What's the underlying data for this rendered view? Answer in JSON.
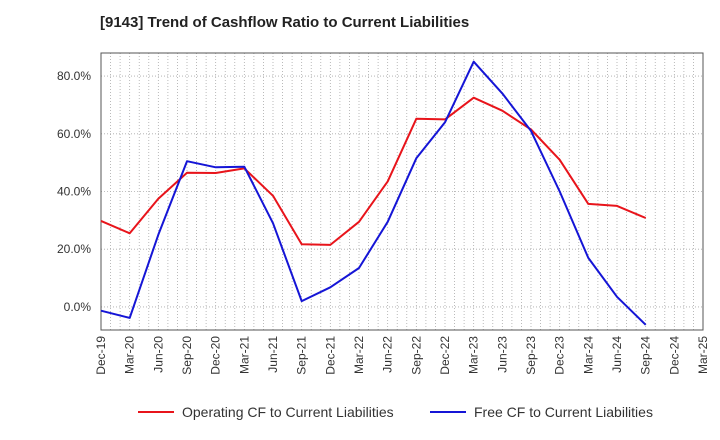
{
  "chart_data": {
    "type": "line",
    "title": "[9143]  Trend of Cashflow Ratio to Current Liabilities",
    "xlabel": "",
    "ylabel": "",
    "categories": [
      "Dec-19",
      "Mar-20",
      "Jun-20",
      "Sep-20",
      "Dec-20",
      "Mar-21",
      "Jun-21",
      "Sep-21",
      "Dec-21",
      "Mar-22",
      "Jun-22",
      "Sep-22",
      "Dec-22",
      "Mar-23",
      "Jun-23",
      "Sep-23",
      "Dec-23",
      "Mar-24",
      "Jun-24",
      "Sep-24",
      "Dec-24",
      "Mar-25"
    ],
    "y_ticks": [
      "0.0%",
      "20.0%",
      "40.0%",
      "60.0%",
      "80.0%"
    ],
    "y_tick_values": [
      0,
      20,
      40,
      60,
      80
    ],
    "ylim": [
      -8,
      88
    ],
    "grid": true,
    "legend_position": "bottom",
    "series": [
      {
        "name": "Operating CF to Current Liabilities",
        "color": "#e8141b",
        "values": [
          29.8,
          25.5,
          37.5,
          46.5,
          46.4,
          48.0,
          38.5,
          21.7,
          21.5,
          29.5,
          43.5,
          65.2,
          65.0,
          72.5,
          68.0,
          61.5,
          51.0,
          35.7,
          35.0,
          30.8,
          null,
          null
        ]
      },
      {
        "name": "Free CF to Current Liabilities",
        "color": "#1515d6",
        "values": [
          -1.3,
          -3.8,
          25.0,
          50.5,
          48.4,
          48.6,
          29.0,
          2.0,
          6.8,
          13.5,
          29.5,
          51.5,
          64.0,
          85.0,
          74.0,
          61.0,
          40.0,
          17.0,
          3.5,
          -6.2,
          null,
          null
        ]
      }
    ]
  }
}
